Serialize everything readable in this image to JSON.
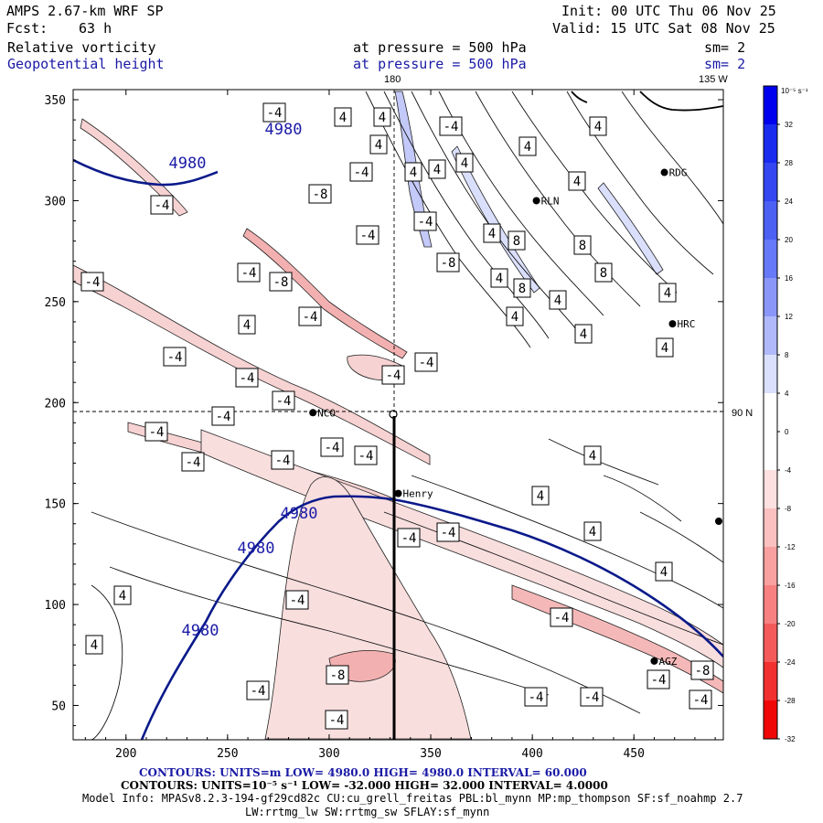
{
  "header": {
    "model": "AMPS 2.67-km WRF SP",
    "init": "Init: 00 UTC Thu 06 Nov 25",
    "fcst_label": "Fcst:",
    "fcst_value": "63 h",
    "valid": "Valid: 15 UTC Sat 08 Nov 25",
    "field1": "Relative vorticity",
    "field1_level": "at pressure =  500 hPa",
    "field1_sm": "sm= 2",
    "field2": "Geopotential height",
    "field2_level": "at pressure =  500 hPa",
    "field2_sm": "sm= 2"
  },
  "map_labels": {
    "lon_180": "180",
    "lon_135w": "135 W",
    "lat_90n": "90 N"
  },
  "stations": [
    {
      "name": "NCO",
      "x": 292,
      "y": 195
    },
    {
      "name": "Henry",
      "x": 334,
      "y": 155
    },
    {
      "name": "RLN",
      "x": 402,
      "y": 300
    },
    {
      "name": "RDG",
      "x": 465,
      "y": 314
    },
    {
      "name": "HRC",
      "x": 469,
      "y": 239
    },
    {
      "name": "AGZ",
      "x": 460,
      "y": 72
    }
  ],
  "axes": {
    "xticks": [
      "200",
      "250",
      "300",
      "350",
      "400",
      "450"
    ],
    "yticks": [
      "50",
      "100",
      "150",
      "200",
      "250",
      "300",
      "350"
    ],
    "xrange": [
      174,
      494
    ],
    "yrange": [
      33,
      355
    ]
  },
  "colorbar": {
    "unit": "10⁻⁵ s⁻¹",
    "ticks": [
      "32",
      "28",
      "24",
      "20",
      "16",
      "12",
      "8",
      "4",
      "0",
      "-4",
      "-8",
      "-12",
      "-16",
      "-20",
      "-24",
      "-28",
      "-32"
    ],
    "colors": [
      "#0000ee",
      "#1a2bf0",
      "#3346f2",
      "#4c60f4",
      "#6679f6",
      "#8a97f8",
      "#b0b9fa",
      "#dadffc",
      "#ffffff",
      "#ffffff",
      "#fde0e0",
      "#fbc0c0",
      "#f9a0a0",
      "#f78080",
      "#f45a5a",
      "#f23030",
      "#f00808"
    ]
  },
  "contour_labels": {
    "height_value": "4980",
    "vort_neg4": "-4",
    "vort_pos4": "4",
    "vort_neg8": "-8",
    "vort_pos8": "8"
  },
  "footer": {
    "line1": "CONTOURS:  UNITS=m  LOW=  4980.0        HIGH=  4980.0        INTERVAL=   60.000",
    "line2": "CONTOURS:  UNITS=10⁻⁵ s⁻¹  LOW= -32.000       HIGH=  32.000      INTERVAL=   4.0000",
    "line3": "Model Info: MPASv8.2.3-194-gf29cd82c CU:cu_grell_freitas PBL:bl_mynn MP:mp_thompson SF:sf_noahmp 2.7",
    "line4": "LW:rrtmg_lw SW:rrtmg_sw SFLAY:sf_mynn"
  }
}
